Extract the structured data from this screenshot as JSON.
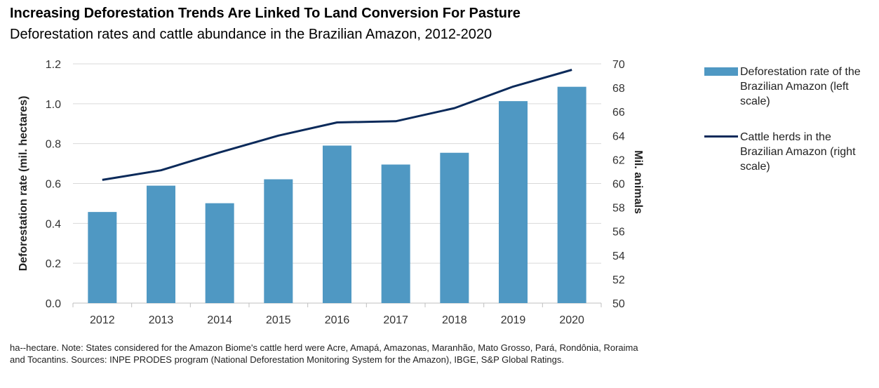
{
  "title": "Increasing Deforestation Trends Are Linked To Land Conversion For Pasture",
  "subtitle": "Deforestation rates and cattle abundance in the Brazilian Amazon, 2012-2020",
  "note": "ha--hectare. Note: States considered for the Amazon Biome's cattle herd were Acre, Amapá, Amazonas, Maranhão, Mato Grosso, Pará, Rondônia, Roraima and Tocantins. Sources: INPE PRODES program (National Deforestation Monitoring System for the Amazon), IBGE, S&P Global Ratings.",
  "colors": {
    "bar": "#4f98c3",
    "line": "#0b2a5a",
    "grid": "#d9d9d9",
    "axis": "#bfbfbf"
  },
  "legend": {
    "bar_label": "Deforestation rate of the Brazilian Amazon (left scale)",
    "line_label": "Cattle herds in the Brazilian Amazon (right scale)"
  },
  "chart_data": {
    "type": "bar+line",
    "categories": [
      "2012",
      "2013",
      "2014",
      "2015",
      "2016",
      "2017",
      "2018",
      "2019",
      "2020"
    ],
    "series": [
      {
        "name": "Deforestation rate of the Brazilian Amazon (left scale)",
        "type": "bar",
        "axis": "left",
        "values": [
          0.457,
          0.589,
          0.501,
          0.621,
          0.79,
          0.695,
          0.754,
          1.013,
          1.085
        ]
      },
      {
        "name": "Cattle herds in the Brazilian Amazon (right scale)",
        "type": "line",
        "axis": "right",
        "values": [
          60.3,
          61.1,
          62.6,
          64.0,
          65.1,
          65.2,
          66.3,
          68.1,
          69.5
        ]
      }
    ],
    "ylabel_left": "Deforestation rate (mil. hectares)",
    "ylabel_right": "Mil. animals",
    "ylim_left": [
      0,
      1.2
    ],
    "yticks_left": [
      "0.0",
      "0.2",
      "0.4",
      "0.6",
      "0.8",
      "1.0",
      "1.2"
    ],
    "ylim_right": [
      50,
      70
    ],
    "yticks_right": [
      "50",
      "52",
      "54",
      "56",
      "58",
      "60",
      "62",
      "64",
      "66",
      "68",
      "70"
    ],
    "grid": true,
    "legend_position": "right"
  }
}
